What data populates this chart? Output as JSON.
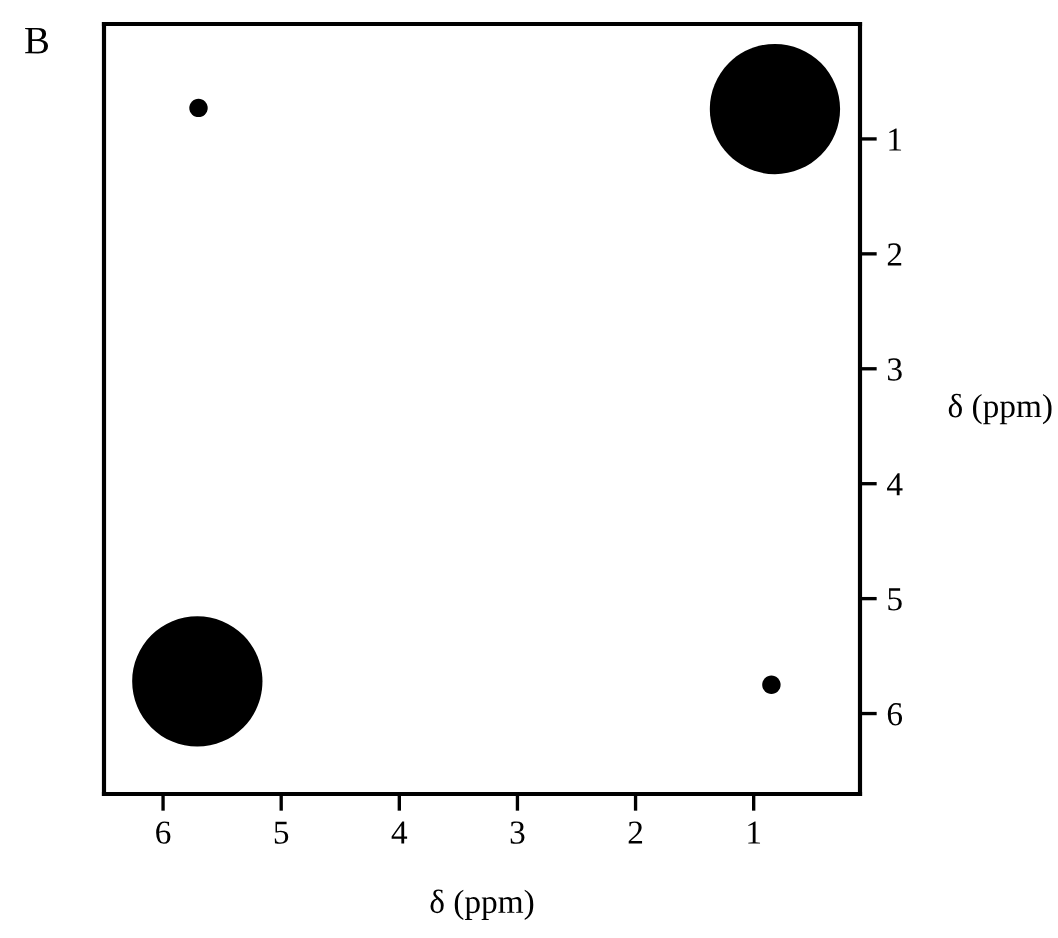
{
  "chart_data": {
    "type": "bubble",
    "title": "B",
    "xlabel": "δ (ppm)",
    "ylabel": "δ (ppm)",
    "x": [
      5.71,
      0.82,
      5.7,
      0.85
    ],
    "values": [
      5.72,
      0.74,
      0.73,
      5.75
    ],
    "sizes": [
      1,
      1,
      0.02,
      0.02
    ],
    "color": "#000000",
    "xlim": [
      6.5,
      0.1
    ],
    "ylim": [
      6.7,
      0.0
    ],
    "xticks": [
      6,
      5,
      4,
      3,
      2,
      1
    ],
    "yticks": [
      1,
      2,
      3,
      4,
      5,
      6
    ],
    "grid": false
  }
}
